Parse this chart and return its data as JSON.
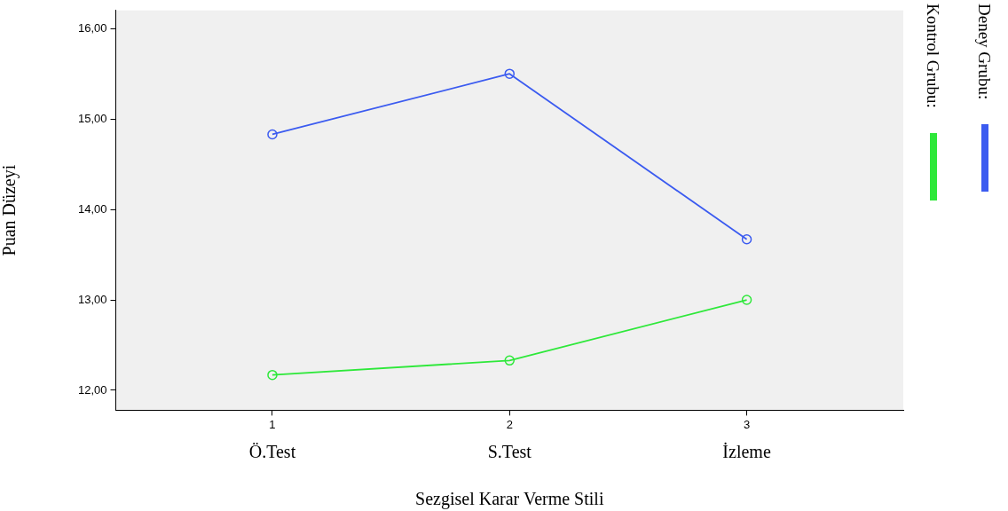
{
  "chart_data": {
    "type": "line",
    "xlabel": "Sezgisel Karar Verme Stili",
    "ylabel": "Puan Düzeyi",
    "x": [
      1,
      2,
      3
    ],
    "xlim": [
      0.34,
      3.66
    ],
    "xticks": [
      1,
      2,
      3
    ],
    "ylim": [
      11.78,
      16.2
    ],
    "yticks": [
      {
        "value": 12,
        "label": "12,00"
      },
      {
        "value": 13,
        "label": "13,00"
      },
      {
        "value": 14,
        "label": "14,00"
      },
      {
        "value": 15,
        "label": "15,00"
      },
      {
        "value": 16,
        "label": "16,00"
      }
    ],
    "series": [
      {
        "name": "Deney Grubu:",
        "color": "#3b5bf0",
        "values": [
          14.83,
          15.5,
          13.67
        ]
      },
      {
        "name": "Kontrol Grubu:",
        "color": "#2ee83a",
        "values": [
          12.17,
          12.33,
          13.0
        ]
      }
    ],
    "annotations": [
      "Ö.Test",
      "S.Test",
      "İzleme"
    ],
    "marker": "circle",
    "line_style": "solid",
    "grid": false,
    "legend": "right"
  }
}
